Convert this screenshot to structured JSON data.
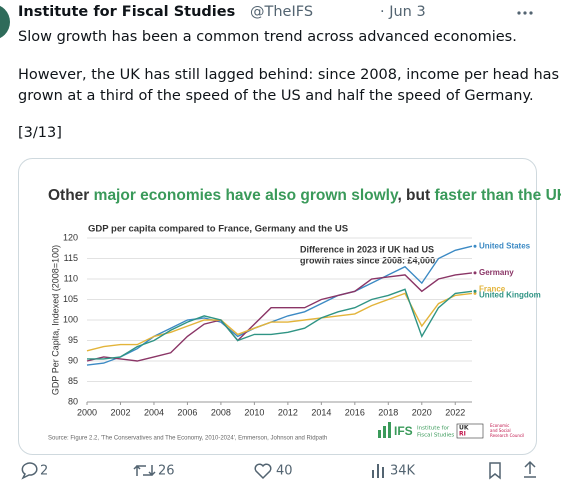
{
  "tweet": {
    "author": "Institute for Fiscal Studies",
    "handle": "@TheIFS",
    "date": "· Jun 3",
    "lines": [
      "Slow growth has been a common trend across advanced economies.",
      "However, the UK has still lagged behind: since 2008, income per head has",
      "grown at a third of the speed of the US and half the speed of Germany.",
      "[3/13]"
    ],
    "replies": "2",
    "retweets": "26",
    "likes": "40",
    "views": "34K"
  },
  "chart_data": {
    "type": "line",
    "title": [
      "Other ",
      "major economies have also grown slowly",
      ", but ",
      "faster than the UK"
    ],
    "subtitle": "GDP per capita compared to France, Germany and the US",
    "ylabel": "GDP Per Capita, Indexed (2008=100)",
    "annotation": [
      "Difference in 2023 if UK had US",
      "growth rates since 2008: £4,000"
    ],
    "source": "Source: Figure 2.2, 'The Conservatives and The Economy, 2010-2024', Emmerson, Johnson and Ridpath",
    "logos": [
      "IFS",
      "Institute for",
      "Fiscal Studies",
      "UK",
      "RI",
      "Economic",
      "and Social",
      "Research Council"
    ],
    "x": [
      2000,
      2001,
      2002,
      2003,
      2004,
      2005,
      2006,
      2007,
      2008,
      2009,
      2010,
      2011,
      2012,
      2013,
      2014,
      2015,
      2016,
      2017,
      2018,
      2019,
      2020,
      2021,
      2022,
      2023
    ],
    "xlim": [
      2000,
      2023
    ],
    "xticks": [
      2000,
      2002,
      2004,
      2006,
      2008,
      2010,
      2012,
      2014,
      2016,
      2018,
      2020,
      2022
    ],
    "ylim": [
      80,
      120
    ],
    "yticks": [
      80,
      85,
      90,
      95,
      100,
      105,
      110,
      115,
      120
    ],
    "grid": true,
    "series": [
      {
        "name": "United States",
        "color": "#3c8ac4",
        "values": [
          89,
          89.5,
          91,
          93,
          96,
          98,
          100,
          100.5,
          99.5,
          96,
          98,
          99.5,
          101,
          102,
          104,
          106,
          107,
          109,
          111,
          113,
          109,
          115,
          117,
          118
        ]
      },
      {
        "name": "Germany",
        "color": "#8a3566",
        "values": [
          90,
          91,
          90.5,
          90,
          91,
          92,
          96,
          99,
          100,
          95,
          99,
          103,
          103,
          103,
          105,
          106,
          107,
          110,
          110.5,
          111,
          107,
          110,
          111,
          111.5
        ]
      },
      {
        "name": "France",
        "color": "#e3b43a",
        "values": [
          92.5,
          93.5,
          94,
          94,
          96,
          97,
          98.5,
          100,
          100,
          96.5,
          98,
          99.5,
          99.5,
          100,
          100.5,
          101,
          101.5,
          103.5,
          105,
          106.5,
          98.5,
          104,
          106,
          106.5
        ]
      },
      {
        "name": "United Kingdom",
        "color": "#2f9484",
        "values": [
          90.5,
          90.5,
          91,
          93.5,
          95,
          97.5,
          99.5,
          101,
          100,
          95,
          96.5,
          96.5,
          97,
          98,
          100.5,
          102,
          103,
          105,
          106,
          107.5,
          96,
          103,
          106.5,
          107
        ]
      }
    ]
  }
}
